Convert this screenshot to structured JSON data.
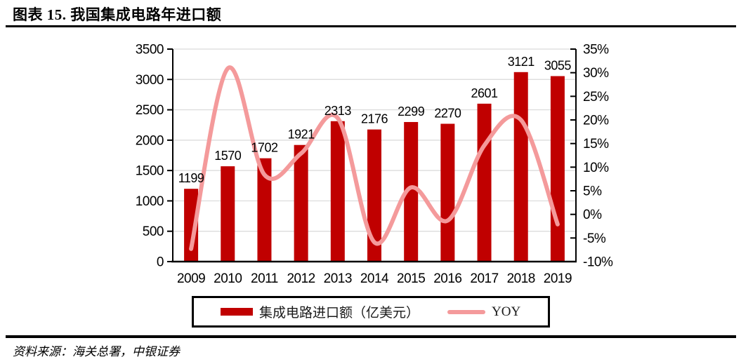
{
  "title": "图表 15. 我国集成电路年进口额",
  "source": "资料来源：海关总署，中银证券",
  "colors": {
    "bar": "#C00000",
    "line": "#F49A9B",
    "grid": "#D9D9D9",
    "axis": "#000000",
    "text": "#000000"
  },
  "chart_data": {
    "type": "combo (bar + smoothed line)",
    "title": "我国集成电路年进口额",
    "categories": [
      "2009",
      "2010",
      "2011",
      "2012",
      "2013",
      "2014",
      "2015",
      "2016",
      "2017",
      "2018",
      "2019"
    ],
    "series": [
      {
        "name": "集成电路进口额（亿美元）",
        "type": "bar",
        "axis": "left",
        "color": "#C00000",
        "values": [
          1199,
          1570,
          1702,
          1921,
          2313,
          2176,
          2299,
          2270,
          2601,
          3121,
          3055
        ]
      },
      {
        "name": "YOY",
        "type": "line",
        "axis": "right",
        "color": "#F49A9B",
        "values_percent": [
          -7.3,
          30.9,
          8.4,
          12.9,
          20.4,
          -5.9,
          5.7,
          -1.3,
          14.6,
          20.0,
          -2.1
        ]
      }
    ],
    "left_axis": {
      "min": 0,
      "max": 3500,
      "step": 500,
      "tick_labels": [
        "0",
        "500",
        "1000",
        "1500",
        "2000",
        "2500",
        "3000",
        "3500"
      ]
    },
    "right_axis": {
      "min": -10,
      "max": 35,
      "step": 5,
      "tick_labels": [
        "-10%",
        "-5%",
        "0%",
        "5%",
        "10%",
        "15%",
        "20%",
        "25%",
        "30%",
        "35%"
      ]
    },
    "grid": "horizontal light-gray lines at left-axis ticks",
    "legend_position": "bottom, black-bordered box",
    "data_labels": "above each bar"
  }
}
